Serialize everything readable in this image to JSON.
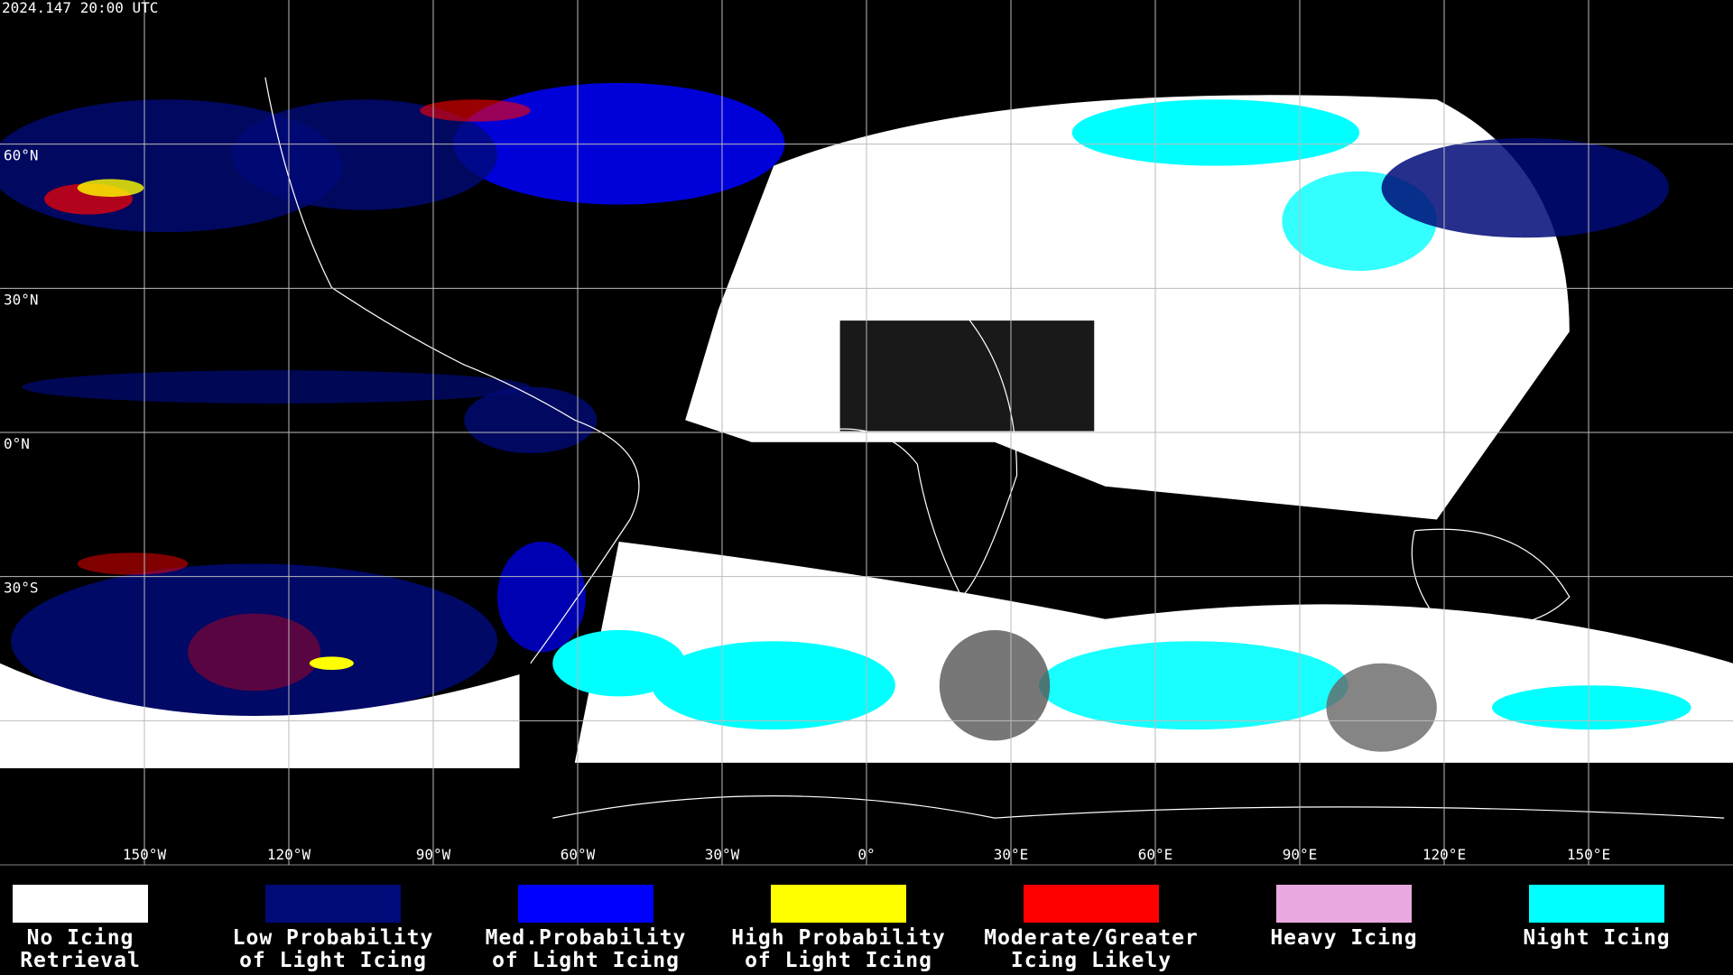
{
  "map": {
    "timestamp": "2024.147 20:00 UTC",
    "xlim": [
      -180,
      180
    ],
    "ylim": [
      90,
      -90
    ],
    "lat_ticks": [
      {
        "value": 60,
        "label": "60°N"
      },
      {
        "value": 30,
        "label": "30°N"
      },
      {
        "value": 0,
        "label": "0°N"
      },
      {
        "value": -30,
        "label": "30°S"
      },
      -60
    ],
    "lon_ticks": [
      {
        "value": -150,
        "label": "150°W"
      },
      {
        "value": -120,
        "label": "120°W"
      },
      {
        "value": -90,
        "label": "90°W"
      },
      {
        "value": -60,
        "label": "60°W"
      },
      {
        "value": -30,
        "label": "30°W"
      },
      {
        "value": 0,
        "label": "0°"
      },
      {
        "value": 30,
        "label": "30°E"
      },
      {
        "value": 60,
        "label": "60°E"
      },
      {
        "value": 90,
        "label": "90°E"
      },
      {
        "value": 120,
        "label": "120°E"
      },
      {
        "value": 150,
        "label": "150°E"
      }
    ],
    "legend": [
      {
        "lines": [
          "No Icing",
          "Retrieval"
        ],
        "color": "#ffffff"
      },
      {
        "lines": [
          "Low Probability",
          "of Light Icing"
        ],
        "color": "#000a78"
      },
      {
        "lines": [
          "Med.Probability",
          "of Light Icing"
        ],
        "color": "#0000ff"
      },
      {
        "lines": [
          "High Probability",
          "of Light Icing"
        ],
        "color": "#ffff00"
      },
      {
        "lines": [
          "Moderate/Greater",
          "Icing Likely"
        ],
        "color": "#ff0000"
      },
      {
        "lines": [
          "Heavy Icing"
        ],
        "color": "#e8a8e0"
      },
      {
        "lines": [
          "Night Icing"
        ],
        "color": "#00ffff"
      }
    ]
  }
}
